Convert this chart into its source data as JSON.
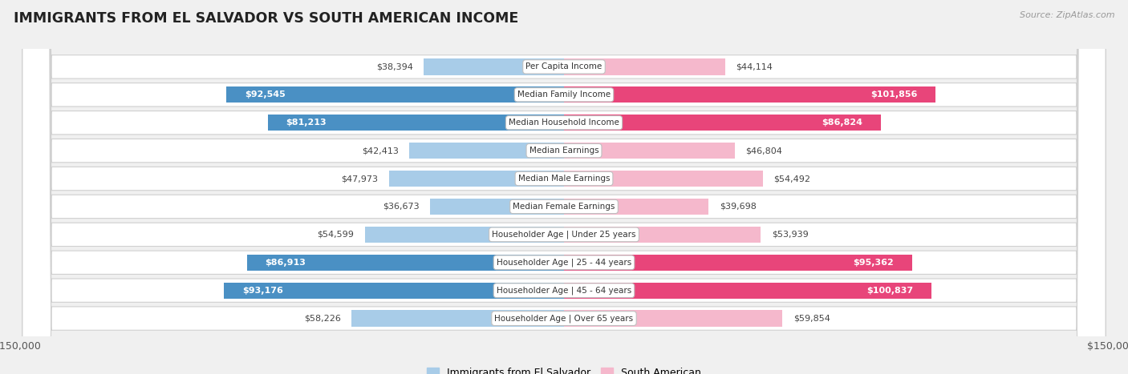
{
  "title": "IMMIGRANTS FROM EL SALVADOR VS SOUTH AMERICAN INCOME",
  "source": "Source: ZipAtlas.com",
  "categories": [
    "Per Capita Income",
    "Median Family Income",
    "Median Household Income",
    "Median Earnings",
    "Median Male Earnings",
    "Median Female Earnings",
    "Householder Age | Under 25 years",
    "Householder Age | 25 - 44 years",
    "Householder Age | 45 - 64 years",
    "Householder Age | Over 65 years"
  ],
  "el_salvador": [
    38394,
    92545,
    81213,
    42413,
    47973,
    36673,
    54599,
    86913,
    93176,
    58226
  ],
  "south_american": [
    44114,
    101856,
    86824,
    46804,
    54492,
    39698,
    53939,
    95362,
    100837,
    59854
  ],
  "el_salvador_labels": [
    "$38,394",
    "$92,545",
    "$81,213",
    "$42,413",
    "$47,973",
    "$36,673",
    "$54,599",
    "$86,913",
    "$93,176",
    "$58,226"
  ],
  "south_american_labels": [
    "$44,114",
    "$101,856",
    "$86,824",
    "$46,804",
    "$54,492",
    "$39,698",
    "$53,939",
    "$95,362",
    "$100,837",
    "$59,854"
  ],
  "el_salvador_color_light": "#a8cce8",
  "el_salvador_color_dark": "#4a90c4",
  "south_american_color_light": "#f5b8cc",
  "south_american_color_dark": "#e8457a",
  "es_inside_threshold": 65000,
  "sa_inside_threshold": 80000,
  "max_value": 150000,
  "bar_height": 0.58,
  "background_color": "#f0f0f0",
  "row_bg": "#f8f8f8",
  "legend_label_1": "Immigrants from El Salvador",
  "legend_label_2": "South American"
}
